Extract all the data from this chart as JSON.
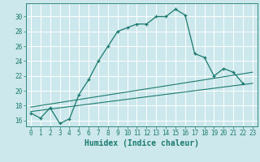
{
  "xlabel": "Humidex (Indice chaleur)",
  "bg_color": "#cde8ec",
  "line_color": "#1a7a6e",
  "grid_color": "#ffffff",
  "x_ticks": [
    0,
    1,
    2,
    3,
    4,
    5,
    6,
    7,
    8,
    9,
    10,
    11,
    12,
    13,
    14,
    15,
    16,
    17,
    18,
    19,
    20,
    21,
    22,
    23
  ],
  "y_ticks": [
    16,
    18,
    20,
    22,
    24,
    26,
    28,
    30
  ],
  "xlim": [
    -0.5,
    23.5
  ],
  "ylim": [
    15.2,
    31.8
  ],
  "line1_x": [
    0,
    1,
    2,
    3,
    4,
    5,
    6,
    7,
    8,
    9,
    10,
    11,
    12,
    13,
    14,
    15,
    16,
    17,
    18,
    19,
    20,
    21,
    22
  ],
  "line1_y": [
    17.0,
    16.3,
    17.7,
    15.6,
    16.2,
    19.5,
    21.5,
    24.0,
    26.0,
    28.0,
    28.5,
    29.0,
    29.0,
    30.0,
    30.0,
    31.0,
    30.2,
    25.0,
    24.5,
    22.0,
    23.0,
    22.5,
    21.0
  ],
  "line2_x": [
    0,
    23
  ],
  "line2_y": [
    17.2,
    21.0
  ],
  "line3_x": [
    0,
    23
  ],
  "line3_y": [
    17.8,
    22.5
  ],
  "xlabel_fontsize": 7,
  "tick_fontsize": 5.5
}
